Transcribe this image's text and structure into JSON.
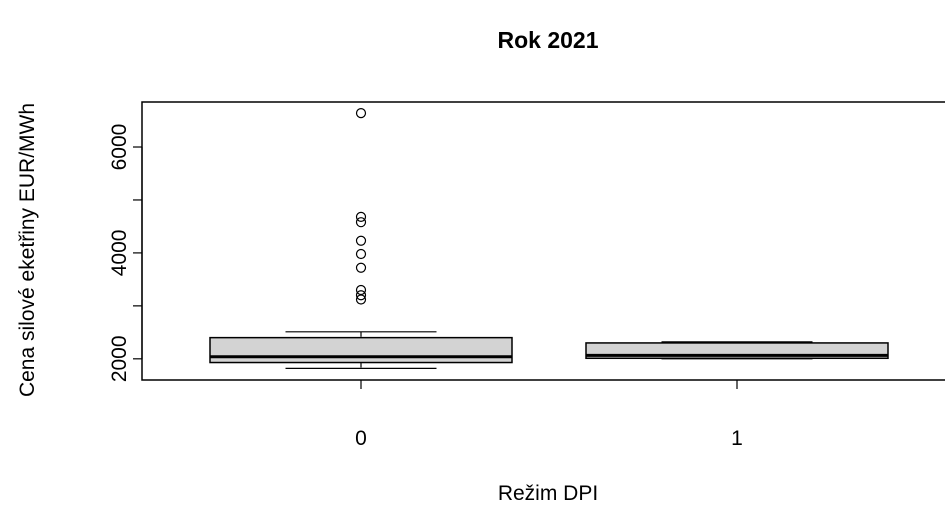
{
  "chart_data": {
    "type": "boxplot",
    "title": "Rok 2021",
    "xlabel": "Režim DPI",
    "ylabel": "Cena silové eketřiny EUR/MWh",
    "categories": [
      "0",
      "1"
    ],
    "ylim": [
      1600,
      6850
    ],
    "yticks": [
      2000,
      4000,
      6000
    ],
    "grid": false,
    "legend": "none",
    "box_fill": "#d3d3d3",
    "boxes": [
      {
        "name": "0",
        "min": 1820,
        "q1": 1930,
        "median": 2040,
        "q3": 2400,
        "max": 2510,
        "outliers": [
          3120,
          3200,
          3300,
          3720,
          3980,
          4230,
          4580,
          4680,
          6640
        ]
      },
      {
        "name": "1",
        "min": 2000,
        "q1": 2010,
        "median": 2065,
        "q3": 2300,
        "max": 2320,
        "outliers": []
      }
    ]
  }
}
